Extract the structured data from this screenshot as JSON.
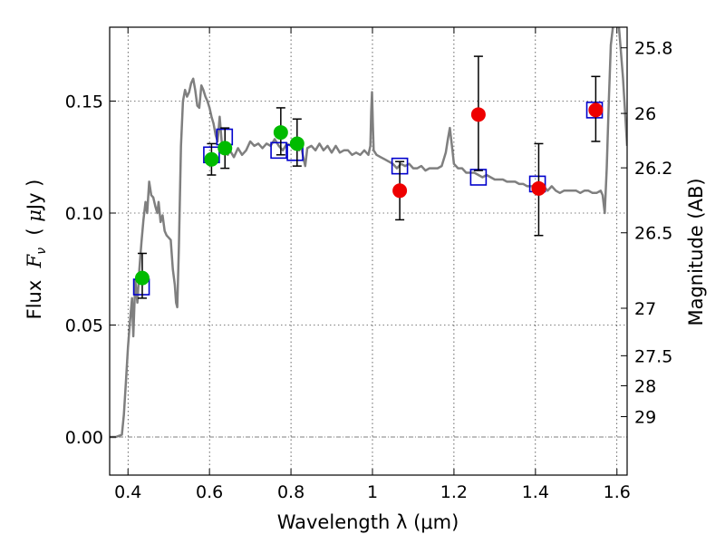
{
  "chart_data": {
    "type": "scatter",
    "xlabel": "Wavelength  λ (μm)",
    "ylabel_parts": [
      "Flux  ",
      "F",
      "ν",
      "  ( ",
      "μ",
      "Jy )"
    ],
    "y2label": "Magnitude (AB)",
    "xlim": [
      0.355,
      1.625
    ],
    "ylim": [
      -0.017,
      0.183
    ],
    "grid": true,
    "x_ticks": [
      {
        "value": 0.4,
        "label": "0.4"
      },
      {
        "value": 0.6,
        "label": "0.6"
      },
      {
        "value": 0.8,
        "label": "0.8"
      },
      {
        "value": 1.0,
        "label": "1"
      },
      {
        "value": 1.2,
        "label": "1.2"
      },
      {
        "value": 1.4,
        "label": "1.4"
      },
      {
        "value": 1.6,
        "label": "1.6"
      }
    ],
    "y_ticks": [
      {
        "value": 0.0,
        "label": "0.00"
      },
      {
        "value": 0.05,
        "label": "0.05"
      },
      {
        "value": 0.1,
        "label": "0.10"
      },
      {
        "value": 0.15,
        "label": "0.15"
      }
    ],
    "mag_ticks": [
      {
        "flux": 0.1738,
        "label": "25.8"
      },
      {
        "flux": 0.1445,
        "label": "26"
      },
      {
        "flux": 0.1202,
        "label": "26.2"
      },
      {
        "flux": 0.0912,
        "label": "26.5"
      },
      {
        "flux": 0.0575,
        "label": "27"
      },
      {
        "flux": 0.0363,
        "label": "27.5"
      },
      {
        "flux": 0.0229,
        "label": "28"
      },
      {
        "flux": 0.0091,
        "label": "29"
      }
    ],
    "series": [
      {
        "kind": "line",
        "color": "#7f7f7f",
        "points": [
          [
            0.355,
            0.0
          ],
          [
            0.37,
            0.0
          ],
          [
            0.385,
            0.001
          ],
          [
            0.39,
            0.01
          ],
          [
            0.395,
            0.025
          ],
          [
            0.4,
            0.04
          ],
          [
            0.405,
            0.052
          ],
          [
            0.41,
            0.062
          ],
          [
            0.413,
            0.045
          ],
          [
            0.418,
            0.07
          ],
          [
            0.423,
            0.06
          ],
          [
            0.428,
            0.075
          ],
          [
            0.433,
            0.087
          ],
          [
            0.438,
            0.097
          ],
          [
            0.443,
            0.105
          ],
          [
            0.447,
            0.1
          ],
          [
            0.452,
            0.114
          ],
          [
            0.457,
            0.108
          ],
          [
            0.462,
            0.107
          ],
          [
            0.467,
            0.103
          ],
          [
            0.472,
            0.1
          ],
          [
            0.475,
            0.105
          ],
          [
            0.48,
            0.096
          ],
          [
            0.485,
            0.099
          ],
          [
            0.49,
            0.092
          ],
          [
            0.495,
            0.09
          ],
          [
            0.5,
            0.089
          ],
          [
            0.505,
            0.088
          ],
          [
            0.51,
            0.075
          ],
          [
            0.515,
            0.068
          ],
          [
            0.518,
            0.06
          ],
          [
            0.521,
            0.058
          ],
          [
            0.525,
            0.085
          ],
          [
            0.53,
            0.13
          ],
          [
            0.535,
            0.15
          ],
          [
            0.54,
            0.155
          ],
          [
            0.545,
            0.152
          ],
          [
            0.55,
            0.154
          ],
          [
            0.555,
            0.158
          ],
          [
            0.56,
            0.16
          ],
          [
            0.565,
            0.155
          ],
          [
            0.57,
            0.148
          ],
          [
            0.575,
            0.147
          ],
          [
            0.58,
            0.157
          ],
          [
            0.585,
            0.155
          ],
          [
            0.59,
            0.152
          ],
          [
            0.595,
            0.15
          ],
          [
            0.6,
            0.147
          ],
          [
            0.605,
            0.143
          ],
          [
            0.61,
            0.14
          ],
          [
            0.615,
            0.135
          ],
          [
            0.62,
            0.132
          ],
          [
            0.625,
            0.143
          ],
          [
            0.63,
            0.132
          ],
          [
            0.635,
            0.128
          ],
          [
            0.64,
            0.13
          ],
          [
            0.645,
            0.126
          ],
          [
            0.65,
            0.128
          ],
          [
            0.66,
            0.125
          ],
          [
            0.67,
            0.129
          ],
          [
            0.68,
            0.126
          ],
          [
            0.69,
            0.128
          ],
          [
            0.7,
            0.132
          ],
          [
            0.71,
            0.13
          ],
          [
            0.72,
            0.131
          ],
          [
            0.73,
            0.129
          ],
          [
            0.74,
            0.131
          ],
          [
            0.75,
            0.13
          ],
          [
            0.76,
            0.133
          ],
          [
            0.77,
            0.13
          ],
          [
            0.78,
            0.128
          ],
          [
            0.79,
            0.131
          ],
          [
            0.8,
            0.13
          ],
          [
            0.81,
            0.129
          ],
          [
            0.82,
            0.128
          ],
          [
            0.825,
            0.13
          ],
          [
            0.83,
            0.125
          ],
          [
            0.835,
            0.121
          ],
          [
            0.84,
            0.129
          ],
          [
            0.85,
            0.13
          ],
          [
            0.86,
            0.128
          ],
          [
            0.87,
            0.131
          ],
          [
            0.88,
            0.128
          ],
          [
            0.89,
            0.13
          ],
          [
            0.9,
            0.127
          ],
          [
            0.91,
            0.13
          ],
          [
            0.92,
            0.127
          ],
          [
            0.93,
            0.128
          ],
          [
            0.94,
            0.128
          ],
          [
            0.95,
            0.126
          ],
          [
            0.96,
            0.127
          ],
          [
            0.97,
            0.126
          ],
          [
            0.98,
            0.128
          ],
          [
            0.99,
            0.126
          ],
          [
            0.995,
            0.13
          ],
          [
            0.997,
            0.145
          ],
          [
            0.999,
            0.154
          ],
          [
            1.001,
            0.14
          ],
          [
            1.003,
            0.128
          ],
          [
            1.01,
            0.126
          ],
          [
            1.02,
            0.125
          ],
          [
            1.03,
            0.124
          ],
          [
            1.04,
            0.123
          ],
          [
            1.05,
            0.122
          ],
          [
            1.06,
            0.12
          ],
          [
            1.07,
            0.122
          ],
          [
            1.08,
            0.121
          ],
          [
            1.09,
            0.122
          ],
          [
            1.1,
            0.12
          ],
          [
            1.11,
            0.12
          ],
          [
            1.12,
            0.121
          ],
          [
            1.13,
            0.119
          ],
          [
            1.14,
            0.12
          ],
          [
            1.15,
            0.12
          ],
          [
            1.16,
            0.12
          ],
          [
            1.17,
            0.121
          ],
          [
            1.18,
            0.127
          ],
          [
            1.185,
            0.133
          ],
          [
            1.19,
            0.138
          ],
          [
            1.195,
            0.13
          ],
          [
            1.2,
            0.122
          ],
          [
            1.21,
            0.12
          ],
          [
            1.22,
            0.12
          ],
          [
            1.23,
            0.118
          ],
          [
            1.24,
            0.118
          ],
          [
            1.25,
            0.118
          ],
          [
            1.26,
            0.117
          ],
          [
            1.27,
            0.116
          ],
          [
            1.28,
            0.117
          ],
          [
            1.29,
            0.116
          ],
          [
            1.3,
            0.115
          ],
          [
            1.31,
            0.115
          ],
          [
            1.32,
            0.115
          ],
          [
            1.33,
            0.114
          ],
          [
            1.34,
            0.114
          ],
          [
            1.35,
            0.114
          ],
          [
            1.36,
            0.113
          ],
          [
            1.37,
            0.113
          ],
          [
            1.38,
            0.112
          ],
          [
            1.39,
            0.112
          ],
          [
            1.4,
            0.112
          ],
          [
            1.41,
            0.11
          ],
          [
            1.42,
            0.112
          ],
          [
            1.43,
            0.11
          ],
          [
            1.44,
            0.112
          ],
          [
            1.45,
            0.11
          ],
          [
            1.46,
            0.109
          ],
          [
            1.47,
            0.11
          ],
          [
            1.48,
            0.11
          ],
          [
            1.49,
            0.11
          ],
          [
            1.5,
            0.11
          ],
          [
            1.51,
            0.109
          ],
          [
            1.52,
            0.11
          ],
          [
            1.53,
            0.11
          ],
          [
            1.54,
            0.109
          ],
          [
            1.55,
            0.109
          ],
          [
            1.56,
            0.11
          ],
          [
            1.565,
            0.108
          ],
          [
            1.57,
            0.1
          ],
          [
            1.575,
            0.12
          ],
          [
            1.58,
            0.15
          ],
          [
            1.585,
            0.175
          ],
          [
            1.59,
            0.183
          ]
        ]
      },
      {
        "kind": "line",
        "color": "#7f7f7f",
        "points": [
          [
            1.605,
            0.183
          ],
          [
            1.615,
            0.16
          ],
          [
            1.625,
            0.13
          ]
        ]
      },
      {
        "kind": "squares",
        "color": "#0000cc",
        "points": [
          [
            0.433,
            0.067
          ],
          [
            0.605,
            0.126
          ],
          [
            0.637,
            0.134
          ],
          [
            0.77,
            0.128
          ],
          [
            0.81,
            0.127
          ],
          [
            1.067,
            0.121
          ],
          [
            1.26,
            0.116
          ],
          [
            1.405,
            0.113
          ],
          [
            1.545,
            0.146
          ]
        ]
      },
      {
        "kind": "points",
        "color": "#00bb00",
        "points": [
          {
            "x": 0.435,
            "y": 0.071,
            "lo": 0.062,
            "hi": 0.082
          },
          {
            "x": 0.605,
            "y": 0.124,
            "lo": 0.117,
            "hi": 0.131
          },
          {
            "x": 0.638,
            "y": 0.129,
            "lo": 0.12,
            "hi": 0.138
          },
          {
            "x": 0.775,
            "y": 0.136,
            "lo": 0.126,
            "hi": 0.147
          },
          {
            "x": 0.815,
            "y": 0.131,
            "lo": 0.121,
            "hi": 0.142
          }
        ]
      },
      {
        "kind": "points",
        "color": "#ee0000",
        "points": [
          {
            "x": 1.067,
            "y": 0.11,
            "lo": 0.097,
            "hi": 0.123
          },
          {
            "x": 1.26,
            "y": 0.144,
            "lo": 0.119,
            "hi": 0.17
          },
          {
            "x": 1.408,
            "y": 0.111,
            "lo": 0.09,
            "hi": 0.131
          },
          {
            "x": 1.548,
            "y": 0.146,
            "lo": 0.132,
            "hi": 0.161
          }
        ]
      }
    ]
  }
}
